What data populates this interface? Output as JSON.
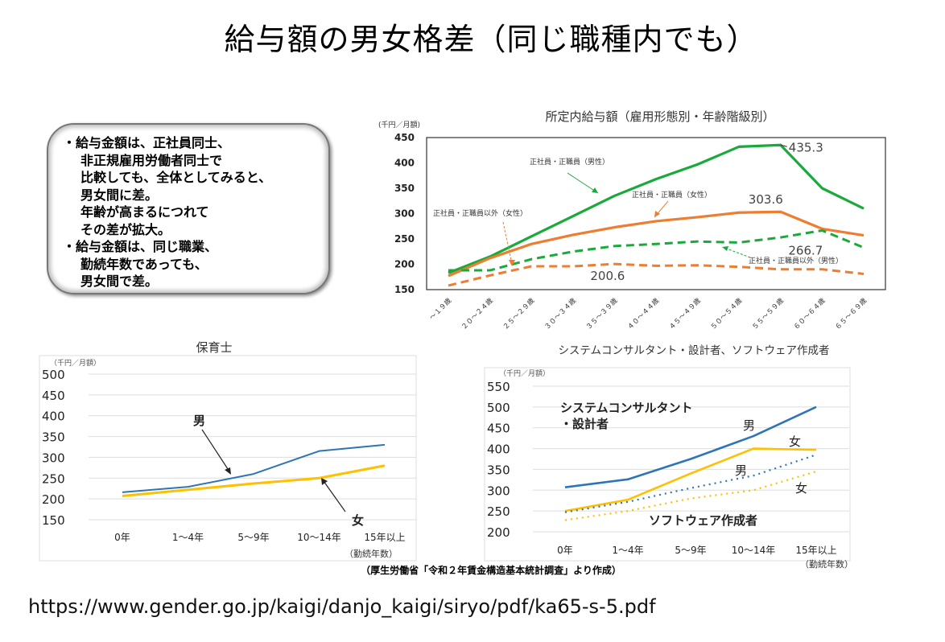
{
  "page": {
    "title": "給与額の男女格差（同じ職種内でも）",
    "summary_lines": [
      {
        "text": "・給与金額は、正社員同士、",
        "indent": false
      },
      {
        "text": "非正規雇用労働者同士で",
        "indent": true
      },
      {
        "text": "比較しても、全体としてみると、",
        "indent": true
      },
      {
        "text": "男女間に差。",
        "indent": true
      },
      {
        "text": "年齢が高まるにつれて",
        "indent": true
      },
      {
        "text": "その差が拡大。",
        "indent": true
      },
      {
        "text": "・給与金額は、同じ職業、",
        "indent": false
      },
      {
        "text": "勤続年数であっても、",
        "indent": true
      },
      {
        "text": "男女間で差。",
        "indent": true
      }
    ],
    "source_note": "（厚生労働省「令和２年賃金構造基本統計調査」より作成）",
    "url": "https://www.gender.go.jp/kaigi/danjo_kaigi/siryo/pdf/ka65-s-5.pdf"
  },
  "chart_data": [
    {
      "id": "age-chart",
      "type": "line",
      "title": "所定内給与額（雇用形態別・年齢階級別）",
      "unit_label": "(千円／月額)",
      "xlabel": "",
      "ylabel": "(千円／月額)",
      "ylim": [
        150,
        450
      ],
      "yticks": [
        150,
        200,
        250,
        300,
        350,
        400,
        450
      ],
      "grid": false,
      "categories": [
        "～１９歳",
        "２０～２４歳",
        "２５～２９歳",
        "３０～３４歳",
        "３５～３９歳",
        "４０～４４歳",
        "４５～４９歳",
        "５０～５４歳",
        "５５～５９歳",
        "６０～６４歳",
        "６５～６９歳"
      ],
      "series": [
        {
          "name": "正社員・正職員（男性）",
          "color": "#1aaa3c",
          "style": "solid",
          "values": [
            183,
            215,
            255,
            295,
            335,
            368,
            397,
            432,
            435.3,
            350,
            310
          ]
        },
        {
          "name": "正社員・正職員（女性）",
          "color": "#ed7d31",
          "style": "solid",
          "values": [
            177,
            212,
            240,
            258,
            273,
            285,
            293,
            302,
            303.6,
            270,
            257
          ]
        },
        {
          "name": "正社員・正職員以外（男性）",
          "color": "#1aaa3c",
          "style": "dashed",
          "values": [
            188,
            188,
            210,
            225,
            236,
            240,
            245,
            243,
            253,
            266.7,
            233
          ]
        },
        {
          "name": "正社員・正職員以外（女性）",
          "color": "#ed7d31",
          "style": "dashed",
          "values": [
            158,
            178,
            196,
            196,
            200.6,
            197,
            198,
            195,
            190,
            190,
            181
          ]
        }
      ],
      "annotations": [
        {
          "text": "435.3",
          "series": 0,
          "index": 8
        },
        {
          "text": "303.6",
          "series": 1,
          "index": 8
        },
        {
          "text": "266.7",
          "series": 2,
          "index": 9
        },
        {
          "text": "200.6",
          "series": 3,
          "index": 4
        }
      ]
    },
    {
      "id": "nursery-chart",
      "type": "line",
      "title": "保育士",
      "unit_label": "（千円／月額）",
      "xlabel": "（勤続年数）",
      "ylabel": "（千円／月額）",
      "ylim": [
        150,
        500
      ],
      "yticks": [
        150,
        200,
        250,
        300,
        350,
        400,
        450,
        500
      ],
      "grid": true,
      "categories": [
        "0年",
        "1～4年",
        "5～9年",
        "10～14年",
        "15年以上"
      ],
      "series": [
        {
          "name": "男",
          "color": "#2e75b6",
          "style": "solid",
          "values": [
            216,
            229,
            260,
            315,
            330
          ]
        },
        {
          "name": "女",
          "color": "#ffc000",
          "style": "solid",
          "values": [
            207,
            222,
            237,
            250,
            280
          ]
        }
      ],
      "annotations": [
        {
          "text": "男",
          "series": 0
        },
        {
          "text": "女",
          "series": 1
        }
      ]
    },
    {
      "id": "it-chart",
      "type": "line",
      "title": "システムコンサルタント・設計者、ソフトウェア作成者",
      "unit_label": "（千円／月額）",
      "xlabel": "（勤続年数）",
      "ylabel": "（千円／月額）",
      "ylim": [
        200,
        550
      ],
      "yticks": [
        200,
        250,
        300,
        350,
        400,
        450,
        500,
        550
      ],
      "grid": true,
      "categories": [
        "0年",
        "1～4年",
        "5～9年",
        "10～14年",
        "15年以上"
      ],
      "series": [
        {
          "name": "システムコンサルタント・設計者 男",
          "color": "#2e75b6",
          "style": "solid",
          "values": [
            307,
            326,
            375,
            430,
            500
          ]
        },
        {
          "name": "システムコンサルタント・設計者 女",
          "color": "#ffc000",
          "style": "solid",
          "values": [
            250,
            277,
            340,
            400,
            397
          ]
        },
        {
          "name": "ソフトウェア作成者 男",
          "color": "#2e75b6",
          "style": "dotted",
          "values": [
            247,
            272,
            305,
            335,
            385
          ]
        },
        {
          "name": "ソフトウェア作成者 女",
          "color": "#ffc000",
          "style": "dotted",
          "values": [
            228,
            250,
            280,
            300,
            345
          ]
        }
      ],
      "group_labels": [
        "システムコンサルタント",
        "・設計者",
        "ソフトウェア作成者"
      ],
      "annotations": [
        {
          "text": "男",
          "series": 0
        },
        {
          "text": "女",
          "series": 1
        },
        {
          "text": "男",
          "series": 2
        },
        {
          "text": "女",
          "series": 3
        }
      ]
    }
  ]
}
